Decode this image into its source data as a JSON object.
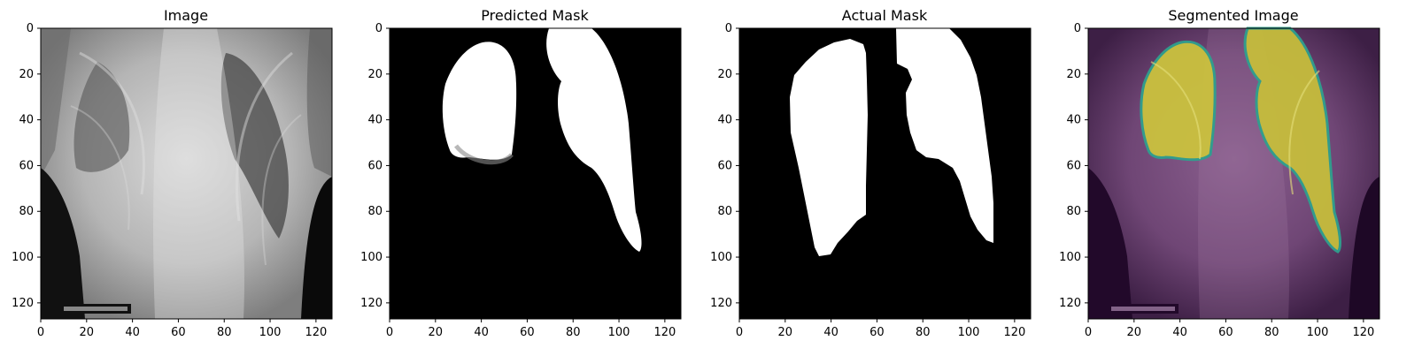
{
  "chart_data": [
    {
      "type": "image",
      "title": "Image",
      "xlim": [
        0,
        127
      ],
      "ylim": [
        127,
        0
      ],
      "xticks": [
        0,
        20,
        40,
        60,
        80,
        100,
        120
      ],
      "yticks": [
        0,
        20,
        40,
        60,
        80,
        100,
        120
      ],
      "content": "grayscale chest x-ray"
    },
    {
      "type": "image",
      "title": "Predicted Mask",
      "xlim": [
        0,
        127
      ],
      "ylim": [
        127,
        0
      ],
      "xticks": [
        0,
        20,
        40,
        60,
        80,
        100,
        120
      ],
      "yticks": [
        0,
        20,
        40,
        60,
        80,
        100,
        120
      ],
      "content": "binary lung mask (predicted)"
    },
    {
      "type": "image",
      "title": "Actual Mask",
      "xlim": [
        0,
        127
      ],
      "ylim": [
        127,
        0
      ],
      "xticks": [
        0,
        20,
        40,
        60,
        80,
        100,
        120
      ],
      "yticks": [
        0,
        20,
        40,
        60,
        80,
        100,
        120
      ],
      "content": "binary lung mask (ground truth)"
    },
    {
      "type": "image",
      "title": "Segmented Image",
      "xlim": [
        0,
        127
      ],
      "ylim": [
        127,
        0
      ],
      "xticks": [
        0,
        20,
        40,
        60,
        80,
        100,
        120
      ],
      "yticks": [
        0,
        20,
        40,
        60,
        80,
        100,
        120
      ],
      "content": "x-ray with mask overlay"
    }
  ],
  "colors": {
    "mask_on": "#ffffff",
    "mask_off": "#000000",
    "overlay_lung": "#c9c23f",
    "overlay_background": "#6a3f70",
    "overlay_edge": "#2a9d8f"
  }
}
